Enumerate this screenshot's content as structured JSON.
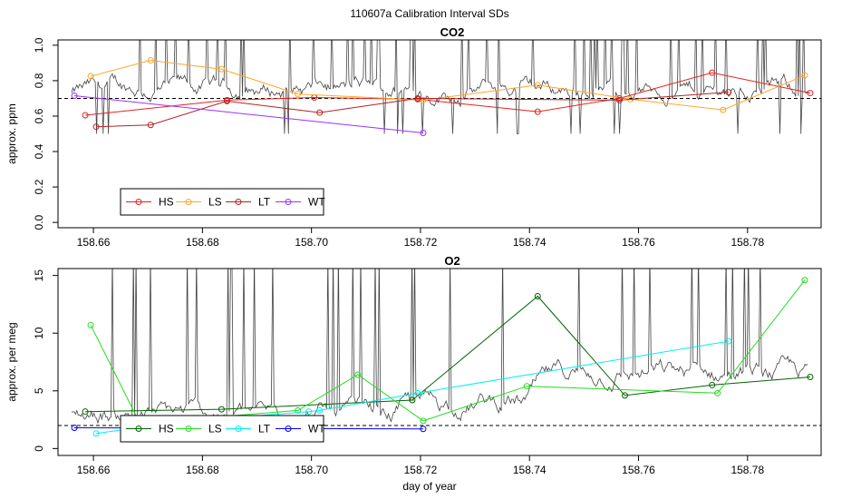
{
  "figure_title": "110607a   Calibration Interval SDs",
  "x_label": "day of year",
  "colors": {
    "hs_co2": "#e8211d",
    "ls_co2": "#ffa62a",
    "lt_co2": "#b22222",
    "wt_co2": "#9b30ff",
    "hs_o2": "#006400",
    "ls_o2": "#22dd22",
    "lt_o2": "#00f0f0",
    "wt_o2": "#0000ff",
    "trace": "#444444"
  },
  "chart_data": [
    {
      "type": "line",
      "title": "CO2",
      "xlabel": "day of year",
      "ylabel": "approx. ppm",
      "xlim": [
        158.6535,
        158.7935
      ],
      "ylim": [
        -0.03,
        1.03
      ],
      "xticks": [
        "158.66",
        "158.68",
        "158.70",
        "158.72",
        "158.74",
        "158.76",
        "158.78"
      ],
      "xtick_values": [
        158.66,
        158.68,
        158.7,
        158.72,
        158.74,
        158.76,
        158.78
      ],
      "yticks": [
        "0.0",
        "0.2",
        "0.4",
        "0.6",
        "0.8",
        "1.0"
      ],
      "ytick_values": [
        0,
        0.2,
        0.4,
        0.6,
        0.8,
        1.0
      ],
      "reference_line": 0.7,
      "series": [
        {
          "name": "HS",
          "color": "#e8211d",
          "x": [
            158.6585,
            158.6845,
            158.7005,
            158.7195,
            158.7415,
            158.7565,
            158.7735,
            158.7915
          ],
          "y": [
            0.605,
            0.69,
            0.705,
            0.695,
            0.625,
            0.7,
            0.845,
            0.73
          ]
        },
        {
          "name": "LS",
          "color": "#ffa62a",
          "x": [
            158.6595,
            158.6705,
            158.6835,
            158.6975,
            158.7205,
            158.7415,
            158.7585,
            158.7755,
            158.7905
          ],
          "y": [
            0.825,
            0.915,
            0.865,
            0.725,
            0.69,
            0.775,
            0.695,
            0.635,
            0.83
          ]
        },
        {
          "name": "LT",
          "color": "#b22222",
          "x": [
            158.6605,
            158.6705,
            158.6845,
            158.7015,
            158.7195,
            158.7565,
            158.7765
          ],
          "y": [
            0.54,
            0.55,
            0.685,
            0.62,
            0.7,
            0.69,
            0.735
          ]
        },
        {
          "name": "WT",
          "color": "#9b30ff",
          "x": [
            158.6565,
            158.7205
          ],
          "y": [
            0.715,
            0.505
          ]
        }
      ],
      "legend": {
        "placement": "bottom-left",
        "entries": [
          "HS",
          "LS",
          "LT",
          "WT"
        ]
      }
    },
    {
      "type": "line",
      "title": "O2",
      "xlabel": "day of year",
      "ylabel": "approx. per meg",
      "xlim": [
        158.6535,
        158.7935
      ],
      "ylim": [
        -0.6,
        15.6
      ],
      "xticks": [
        "158.66",
        "158.68",
        "158.70",
        "158.72",
        "158.74",
        "158.76",
        "158.78"
      ],
      "xtick_values": [
        158.66,
        158.68,
        158.7,
        158.72,
        158.74,
        158.76,
        158.78
      ],
      "yticks": [
        "0",
        "5",
        "10",
        "15"
      ],
      "ytick_values": [
        0,
        5,
        10,
        15
      ],
      "reference_line": 2.0,
      "series": [
        {
          "name": "HS",
          "color": "#006400",
          "x": [
            158.6585,
            158.6835,
            158.7185,
            158.7415,
            158.7575,
            158.7735,
            158.7915
          ],
          "y": [
            3.2,
            3.4,
            4.2,
            13.2,
            4.6,
            5.5,
            6.2
          ]
        },
        {
          "name": "LS",
          "color": "#22dd22",
          "x": [
            158.6595,
            158.6685,
            158.6975,
            158.7085,
            158.7205,
            158.7395,
            158.7745,
            158.7905
          ],
          "y": [
            10.7,
            2.2,
            3.3,
            6.4,
            2.4,
            5.4,
            4.8,
            14.6
          ]
        },
        {
          "name": "LT",
          "color": "#00f0f0",
          "x": [
            158.6605,
            158.6755,
            158.6995,
            158.7015,
            158.7195,
            158.7765
          ],
          "y": [
            1.3,
            2.3,
            3.2,
            3.3,
            4.8,
            9.3
          ]
        },
        {
          "name": "WT",
          "color": "#0000ff",
          "x": [
            158.6565,
            158.7205
          ],
          "y": [
            1.8,
            1.7
          ]
        }
      ],
      "legend": {
        "placement": "bottom-left",
        "entries": [
          "HS",
          "LS",
          "LT",
          "WT"
        ]
      }
    }
  ]
}
